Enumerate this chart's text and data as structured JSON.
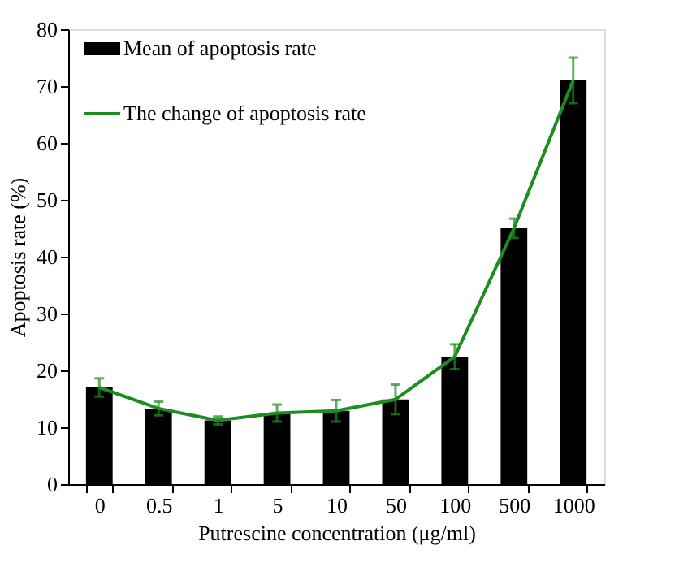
{
  "chart_data": {
    "type": "bar",
    "xlabel": "Putrescine concentration (μg/ml)",
    "ylabel": "Apoptosis rate (%)",
    "categories": [
      "0",
      "0.5",
      "1",
      "5",
      "10",
      "50",
      "100",
      "500",
      "1000"
    ],
    "series": [
      {
        "name": "Mean of apoptosis rate",
        "color": "#000000",
        "values": [
          17,
          13.3,
          11.2,
          12.5,
          12.9,
          14.9,
          22.4,
          45,
          71
        ]
      },
      {
        "name": "The change of apoptosis rate",
        "type": "line",
        "color": "#1e8c1e",
        "values": [
          17,
          13.3,
          11.2,
          12.5,
          12.9,
          14.9,
          22.4,
          45,
          71
        ],
        "errors": [
          1.6,
          1.2,
          0.7,
          1.5,
          1.9,
          2.6,
          2.2,
          1.7,
          4
        ]
      }
    ],
    "ylim": [
      0,
      80
    ],
    "yticks": [
      0,
      10,
      20,
      30,
      40,
      50,
      60,
      70,
      80
    ],
    "grid": false,
    "legend": "top left"
  }
}
